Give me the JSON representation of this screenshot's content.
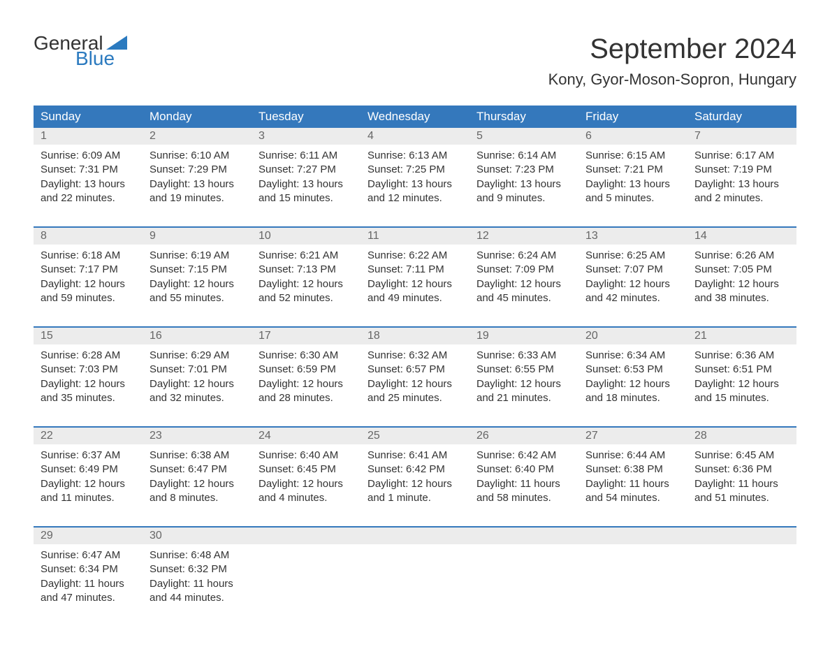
{
  "logo": {
    "text1": "General",
    "text2": "Blue",
    "tri_color": "#2b7abf"
  },
  "title": "September 2024",
  "location": "Kony, Gyor-Moson-Sopron, Hungary",
  "colors": {
    "header_bg": "#3478bc",
    "header_text": "#ffffff",
    "daynum_bg": "#ececec",
    "daynum_text": "#666666",
    "body_text": "#333333",
    "week_border": "#3478bc",
    "logo_blue": "#2b7abf"
  },
  "weekdays": [
    "Sunday",
    "Monday",
    "Tuesday",
    "Wednesday",
    "Thursday",
    "Friday",
    "Saturday"
  ],
  "weeks": [
    {
      "days": [
        {
          "n": "1",
          "sr": "6:09 AM",
          "ss": "7:31 PM",
          "dl": "13 hours and 22 minutes."
        },
        {
          "n": "2",
          "sr": "6:10 AM",
          "ss": "7:29 PM",
          "dl": "13 hours and 19 minutes."
        },
        {
          "n": "3",
          "sr": "6:11 AM",
          "ss": "7:27 PM",
          "dl": "13 hours and 15 minutes."
        },
        {
          "n": "4",
          "sr": "6:13 AM",
          "ss": "7:25 PM",
          "dl": "13 hours and 12 minutes."
        },
        {
          "n": "5",
          "sr": "6:14 AM",
          "ss": "7:23 PM",
          "dl": "13 hours and 9 minutes."
        },
        {
          "n": "6",
          "sr": "6:15 AM",
          "ss": "7:21 PM",
          "dl": "13 hours and 5 minutes."
        },
        {
          "n": "7",
          "sr": "6:17 AM",
          "ss": "7:19 PM",
          "dl": "13 hours and 2 minutes."
        }
      ]
    },
    {
      "days": [
        {
          "n": "8",
          "sr": "6:18 AM",
          "ss": "7:17 PM",
          "dl": "12 hours and 59 minutes."
        },
        {
          "n": "9",
          "sr": "6:19 AM",
          "ss": "7:15 PM",
          "dl": "12 hours and 55 minutes."
        },
        {
          "n": "10",
          "sr": "6:21 AM",
          "ss": "7:13 PM",
          "dl": "12 hours and 52 minutes."
        },
        {
          "n": "11",
          "sr": "6:22 AM",
          "ss": "7:11 PM",
          "dl": "12 hours and 49 minutes."
        },
        {
          "n": "12",
          "sr": "6:24 AM",
          "ss": "7:09 PM",
          "dl": "12 hours and 45 minutes."
        },
        {
          "n": "13",
          "sr": "6:25 AM",
          "ss": "7:07 PM",
          "dl": "12 hours and 42 minutes."
        },
        {
          "n": "14",
          "sr": "6:26 AM",
          "ss": "7:05 PM",
          "dl": "12 hours and 38 minutes."
        }
      ]
    },
    {
      "days": [
        {
          "n": "15",
          "sr": "6:28 AM",
          "ss": "7:03 PM",
          "dl": "12 hours and 35 minutes."
        },
        {
          "n": "16",
          "sr": "6:29 AM",
          "ss": "7:01 PM",
          "dl": "12 hours and 32 minutes."
        },
        {
          "n": "17",
          "sr": "6:30 AM",
          "ss": "6:59 PM",
          "dl": "12 hours and 28 minutes."
        },
        {
          "n": "18",
          "sr": "6:32 AM",
          "ss": "6:57 PM",
          "dl": "12 hours and 25 minutes."
        },
        {
          "n": "19",
          "sr": "6:33 AM",
          "ss": "6:55 PM",
          "dl": "12 hours and 21 minutes."
        },
        {
          "n": "20",
          "sr": "6:34 AM",
          "ss": "6:53 PM",
          "dl": "12 hours and 18 minutes."
        },
        {
          "n": "21",
          "sr": "6:36 AM",
          "ss": "6:51 PM",
          "dl": "12 hours and 15 minutes."
        }
      ]
    },
    {
      "days": [
        {
          "n": "22",
          "sr": "6:37 AM",
          "ss": "6:49 PM",
          "dl": "12 hours and 11 minutes."
        },
        {
          "n": "23",
          "sr": "6:38 AM",
          "ss": "6:47 PM",
          "dl": "12 hours and 8 minutes."
        },
        {
          "n": "24",
          "sr": "6:40 AM",
          "ss": "6:45 PM",
          "dl": "12 hours and 4 minutes."
        },
        {
          "n": "25",
          "sr": "6:41 AM",
          "ss": "6:42 PM",
          "dl": "12 hours and 1 minute."
        },
        {
          "n": "26",
          "sr": "6:42 AM",
          "ss": "6:40 PM",
          "dl": "11 hours and 58 minutes."
        },
        {
          "n": "27",
          "sr": "6:44 AM",
          "ss": "6:38 PM",
          "dl": "11 hours and 54 minutes."
        },
        {
          "n": "28",
          "sr": "6:45 AM",
          "ss": "6:36 PM",
          "dl": "11 hours and 51 minutes."
        }
      ]
    },
    {
      "days": [
        {
          "n": "29",
          "sr": "6:47 AM",
          "ss": "6:34 PM",
          "dl": "11 hours and 47 minutes."
        },
        {
          "n": "30",
          "sr": "6:48 AM",
          "ss": "6:32 PM",
          "dl": "11 hours and 44 minutes."
        },
        null,
        null,
        null,
        null,
        null
      ]
    }
  ],
  "labels": {
    "sunrise": "Sunrise: ",
    "sunset": "Sunset: ",
    "daylight": "Daylight: "
  }
}
